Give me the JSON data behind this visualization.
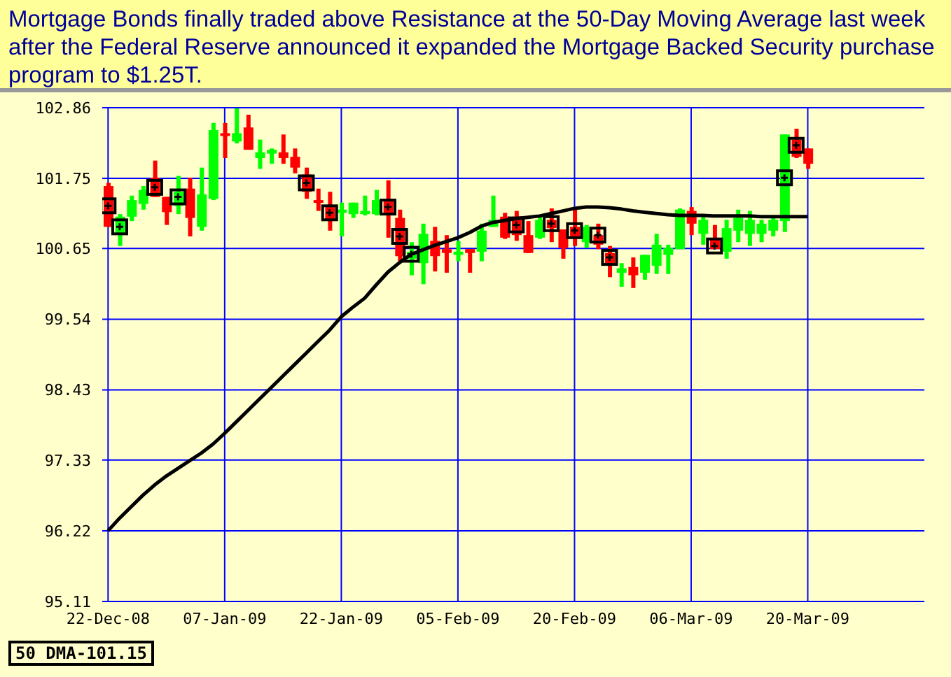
{
  "chart_data": {
    "type": "candlestick",
    "title": "Mortgage Bonds finally traded above Resistance at the 50-Day Moving Average last week after the Federal Reserve announced it expanded the Mortgage Backed Security purchase program to $1.25T.",
    "annotations": [
      "50 DMA-101.15"
    ],
    "categories": [
      "22-Dec-08",
      null,
      null,
      null,
      null,
      null,
      null,
      null,
      null,
      null,
      "07-Jan-09",
      null,
      null,
      null,
      null,
      null,
      null,
      null,
      null,
      null,
      "22-Jan-09",
      null,
      null,
      null,
      null,
      null,
      null,
      null,
      null,
      null,
      "05-Feb-09",
      null,
      null,
      null,
      null,
      null,
      null,
      null,
      null,
      null,
      "20-Feb-09",
      null,
      null,
      null,
      null,
      null,
      null,
      null,
      null,
      null,
      "06-Mar-09",
      null,
      null,
      null,
      null,
      null,
      null,
      null,
      null,
      null,
      "20-Mar-09"
    ],
    "ohlc": [
      [
        101.63,
        101.68,
        100.99,
        100.99
      ],
      [
        100.89,
        101.19,
        100.69,
        101.15
      ],
      [
        101.15,
        101.48,
        101.08,
        101.41
      ],
      [
        101.35,
        101.63,
        101.26,
        101.57
      ],
      [
        101.76,
        102.03,
        101.46,
        101.46
      ],
      [
        101.46,
        101.46,
        101.02,
        101.22
      ],
      [
        101.32,
        101.79,
        101.19,
        101.54
      ],
      [
        101.59,
        101.76,
        100.84,
        101.13
      ],
      [
        100.99,
        101.92,
        100.93,
        101.5
      ],
      [
        101.43,
        102.62,
        101.41,
        102.51
      ],
      [
        102.46,
        102.62,
        102.07,
        102.42
      ],
      [
        102.33,
        102.85,
        102.3,
        102.46
      ],
      [
        102.55,
        102.75,
        102.2,
        102.2
      ],
      [
        102.07,
        102.36,
        101.9,
        102.16
      ],
      [
        102.14,
        102.22,
        101.98,
        102.2
      ],
      [
        102.16,
        102.44,
        101.98,
        102.07
      ],
      [
        102.09,
        102.22,
        101.83,
        101.92
      ],
      [
        101.81,
        101.92,
        101.43,
        101.54
      ],
      [
        101.41,
        101.59,
        101.24,
        101.37
      ],
      [
        101.3,
        101.54,
        100.93,
        101.1
      ],
      [
        101.21,
        101.37,
        100.84,
        101.26
      ],
      [
        101.19,
        101.37,
        101.13,
        101.37
      ],
      [
        101.19,
        101.48,
        101.17,
        101.24
      ],
      [
        101.19,
        101.57,
        101.17,
        101.41
      ],
      [
        101.41,
        101.72,
        100.82,
        101.19
      ],
      [
        101.13,
        101.26,
        100.45,
        100.53
      ],
      [
        100.49,
        100.75,
        100.23,
        100.6
      ],
      [
        100.42,
        101.04,
        100.09,
        100.88
      ],
      [
        100.77,
        100.99,
        100.29,
        100.53
      ],
      [
        100.64,
        100.86,
        100.27,
        100.58
      ],
      [
        100.55,
        100.77,
        100.45,
        100.6
      ],
      [
        100.64,
        100.64,
        100.27,
        100.58
      ],
      [
        100.6,
        101.04,
        100.45,
        100.93
      ],
      [
        100.99,
        101.48,
        100.99,
        101.1
      ],
      [
        101.15,
        101.21,
        100.8,
        100.82
      ],
      [
        101.15,
        101.24,
        100.77,
        100.86
      ],
      [
        100.86,
        101.08,
        100.58,
        100.58
      ],
      [
        100.82,
        101.15,
        100.8,
        101.1
      ],
      [
        101.1,
        101.28,
        100.75,
        100.97
      ],
      [
        100.95,
        100.95,
        100.49,
        100.66
      ],
      [
        100.99,
        101.26,
        100.69,
        100.82
      ],
      [
        100.75,
        101.02,
        100.66,
        100.99
      ],
      [
        100.86,
        101.04,
        100.64,
        100.71
      ],
      [
        100.58,
        100.69,
        100.2,
        100.42
      ],
      [
        100.27,
        100.42,
        100.05,
        100.34
      ],
      [
        100.36,
        100.51,
        100.03,
        100.23
      ],
      [
        100.27,
        100.55,
        100.16,
        100.55
      ],
      [
        100.38,
        100.88,
        100.25,
        100.71
      ],
      [
        100.55,
        100.71,
        100.25,
        100.66
      ],
      [
        100.64,
        101.28,
        100.64,
        101.26
      ],
      [
        101.24,
        101.3,
        100.86,
        101.04
      ],
      [
        100.88,
        101.17,
        100.71,
        101.1
      ],
      [
        100.79,
        101.02,
        100.64,
        100.64
      ],
      [
        100.6,
        101.1,
        100.49,
        100.97
      ],
      [
        100.93,
        101.26,
        100.75,
        101.13
      ],
      [
        100.88,
        101.24,
        100.69,
        101.1
      ],
      [
        100.88,
        101.1,
        100.75,
        101.04
      ],
      [
        100.93,
        101.17,
        100.84,
        101.1
      ],
      [
        101.08,
        102.44,
        100.91,
        102.44
      ],
      [
        102.36,
        102.53,
        102.07,
        102.09
      ],
      [
        102.22,
        102.22,
        101.9,
        101.98
      ]
    ],
    "colors": [
      "#ff0000",
      "#00ff00",
      "#00ff00",
      "#00ff00",
      "#ff0000",
      "#ff0000",
      "#00ff00",
      "#ff0000",
      "#00ff00",
      "#00ff00",
      "#ff0000",
      "#00ff00",
      "#ff0000",
      "#00ff00",
      "#00ff00",
      "#ff0000",
      "#ff0000",
      "#ff0000",
      "#ff0000",
      "#ff0000",
      "#00ff00",
      "#00ff00",
      "#00ff00",
      "#00ff00",
      "#ff0000",
      "#ff0000",
      "#00ff00",
      "#00ff00",
      "#ff0000",
      "#ff0000",
      "#00ff00",
      "#ff0000",
      "#00ff00",
      "#00ff00",
      "#ff0000",
      "#ff0000",
      "#ff0000",
      "#00ff00",
      "#ff0000",
      "#ff0000",
      "#ff0000",
      "#00ff00",
      "#ff0000",
      "#ff0000",
      "#00ff00",
      "#ff0000",
      "#00ff00",
      "#00ff00",
      "#00ff00",
      "#00ff00",
      "#ff0000",
      "#00ff00",
      "#ff0000",
      "#00ff00",
      "#00ff00",
      "#00ff00",
      "#00ff00",
      "#00ff00",
      "#00ff00",
      "#ff0000",
      "#ff0000"
    ],
    "series": [
      {
        "type": "line",
        "color": "#000000",
        "values": [
          96.22,
          96.42,
          96.6,
          96.78,
          96.94,
          97.08,
          97.2,
          97.32,
          97.44,
          97.58,
          97.75,
          97.93,
          98.11,
          98.29,
          98.47,
          98.65,
          98.83,
          99.01,
          99.19,
          99.37,
          99.58,
          99.73,
          99.87,
          100.08,
          100.28,
          100.43,
          100.56,
          100.63,
          100.7,
          100.76,
          100.82,
          100.9,
          101.0,
          101.06,
          101.09,
          101.12,
          101.14,
          101.16,
          101.2,
          101.24,
          101.28,
          101.3,
          101.3,
          101.29,
          101.27,
          101.24,
          101.22,
          101.2,
          101.18,
          101.17,
          101.17,
          101.17,
          101.16,
          101.16,
          101.16,
          101.16,
          101.15,
          101.15,
          101.15,
          101.15,
          101.15
        ]
      },
      {
        "type": "scatter",
        "color": "#000000",
        "marker": "square",
        "values": [
          101.32,
          100.99,
          null,
          null,
          101.61,
          null,
          101.46,
          null,
          null,
          null,
          null,
          null,
          null,
          null,
          null,
          null,
          null,
          101.68,
          null,
          101.21,
          null,
          null,
          null,
          null,
          101.3,
          100.84,
          100.56,
          null,
          null,
          null,
          null,
          null,
          null,
          null,
          null,
          101.02,
          null,
          null,
          101.04,
          null,
          100.93,
          null,
          100.86,
          100.51,
          null,
          null,
          null,
          null,
          null,
          null,
          null,
          null,
          100.69,
          null,
          null,
          null,
          null,
          null,
          101.76,
          102.27,
          null
        ]
      }
    ],
    "ylim": [
      95.11,
      102.86
    ],
    "yticks": [
      95.11,
      96.22,
      97.33,
      98.43,
      99.54,
      100.65,
      101.75,
      102.86
    ],
    "grid": true
  }
}
